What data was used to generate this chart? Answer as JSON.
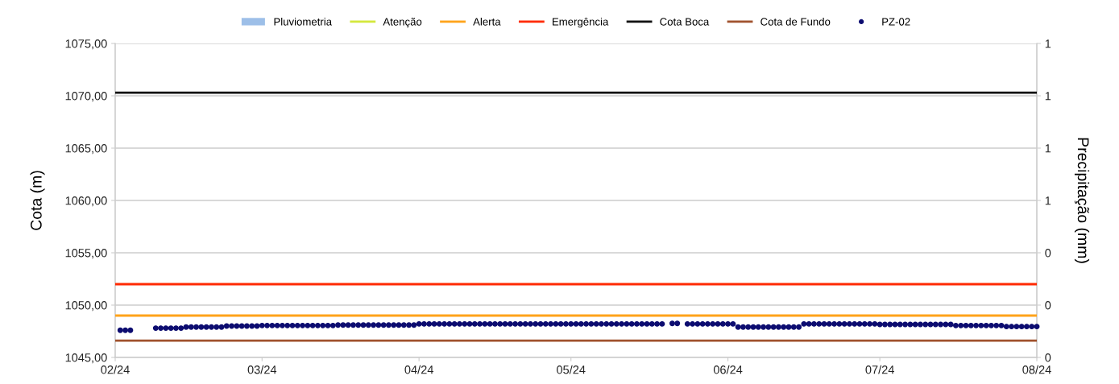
{
  "chart_data": {
    "type": "scatter",
    "xlabel": null,
    "ylabel": "Cota (m)",
    "y2label": "Precipitação (mm)",
    "xlim": [
      "2024-02-01",
      "2024-08-01"
    ],
    "xticks": [
      {
        "value": "2024-02-01",
        "label": "02/24"
      },
      {
        "value": "2024-03-01",
        "label": "03/24"
      },
      {
        "value": "2024-04-01",
        "label": "04/24"
      },
      {
        "value": "2024-05-01",
        "label": "05/24"
      },
      {
        "value": "2024-06-01",
        "label": "06/24"
      },
      {
        "value": "2024-07-01",
        "label": "07/24"
      },
      {
        "value": "2024-08-01",
        "label": "08/24"
      }
    ],
    "ylim": [
      1045,
      1075
    ],
    "yticks": [
      {
        "value": 1045,
        "label": "1045,00"
      },
      {
        "value": 1050,
        "label": "1050,00"
      },
      {
        "value": 1055,
        "label": "1055,00"
      },
      {
        "value": 1060,
        "label": "1060,00"
      },
      {
        "value": 1065,
        "label": "1065,00"
      },
      {
        "value": 1070,
        "label": "1070,00"
      },
      {
        "value": 1075,
        "label": "1075,00"
      }
    ],
    "y2lim": [
      0,
      1
    ],
    "y2ticks": [
      0,
      {
        "value": 0.1667,
        "label": "0"
      },
      {
        "value": 0.3333,
        "label": "0"
      },
      {
        "value": 0.5,
        "label": "1"
      },
      {
        "value": 0.6667,
        "label": "1"
      },
      {
        "value": 0.8333,
        "label": "1"
      },
      1
    ],
    "grid": "y",
    "legend": "top",
    "marker": "circle",
    "ref_lines": [
      {
        "axis": "y",
        "value": null,
        "label": "Atenção",
        "color": "#d4e83c"
      },
      {
        "axis": "y",
        "value": 1049,
        "label": "Alerta",
        "color": "#ffa31a"
      },
      {
        "axis": "y",
        "value": 1052,
        "label": "Emergência",
        "color": "#ff2a00"
      },
      {
        "axis": "y",
        "value": 1070.3,
        "label": "Cota Boca",
        "color": "#111111"
      },
      {
        "axis": "y",
        "value": 1046.6,
        "label": "Cota de Fundo",
        "color": "#a0522d"
      }
    ],
    "series": [
      {
        "name": "Pluviometria",
        "type": "bar",
        "color": "#9dbfe8"
      },
      {
        "name": "PZ-02",
        "color": "#0c0c70",
        "x": [
          "2024-02-02",
          "2024-02-03",
          "2024-02-04",
          "2024-02-09",
          "2024-02-10",
          "2024-02-11",
          "2024-02-12",
          "2024-02-13",
          "2024-02-14",
          "2024-02-15",
          "2024-02-16",
          "2024-02-17",
          "2024-02-18",
          "2024-02-19",
          "2024-02-20",
          "2024-02-21",
          "2024-02-22",
          "2024-02-23",
          "2024-02-24",
          "2024-02-25",
          "2024-02-26",
          "2024-02-27",
          "2024-02-28",
          "2024-02-29",
          "2024-03-01",
          "2024-03-02",
          "2024-03-03",
          "2024-03-04",
          "2024-03-05",
          "2024-03-06",
          "2024-03-07",
          "2024-03-08",
          "2024-03-09",
          "2024-03-10",
          "2024-03-11",
          "2024-03-12",
          "2024-03-13",
          "2024-03-14",
          "2024-03-15",
          "2024-03-16",
          "2024-03-17",
          "2024-03-18",
          "2024-03-19",
          "2024-03-20",
          "2024-03-21",
          "2024-03-22",
          "2024-03-23",
          "2024-03-24",
          "2024-03-25",
          "2024-03-26",
          "2024-03-27",
          "2024-03-28",
          "2024-03-29",
          "2024-03-30",
          "2024-03-31",
          "2024-04-01",
          "2024-04-02",
          "2024-04-03",
          "2024-04-04",
          "2024-04-05",
          "2024-04-06",
          "2024-04-07",
          "2024-04-08",
          "2024-04-09",
          "2024-04-10",
          "2024-04-11",
          "2024-04-12",
          "2024-04-13",
          "2024-04-14",
          "2024-04-15",
          "2024-04-16",
          "2024-04-17",
          "2024-04-18",
          "2024-04-19",
          "2024-04-20",
          "2024-04-21",
          "2024-04-22",
          "2024-04-23",
          "2024-04-24",
          "2024-04-25",
          "2024-04-26",
          "2024-04-27",
          "2024-04-28",
          "2024-04-29",
          "2024-04-30",
          "2024-05-01",
          "2024-05-02",
          "2024-05-03",
          "2024-05-04",
          "2024-05-05",
          "2024-05-06",
          "2024-05-07",
          "2024-05-08",
          "2024-05-09",
          "2024-05-10",
          "2024-05-11",
          "2024-05-12",
          "2024-05-13",
          "2024-05-14",
          "2024-05-15",
          "2024-05-16",
          "2024-05-17",
          "2024-05-18",
          "2024-05-19",
          "2024-05-21",
          "2024-05-22",
          "2024-05-24",
          "2024-05-25",
          "2024-05-26",
          "2024-05-27",
          "2024-05-28",
          "2024-05-29",
          "2024-05-30",
          "2024-05-31",
          "2024-06-01",
          "2024-06-02",
          "2024-06-03",
          "2024-06-04",
          "2024-06-05",
          "2024-06-06",
          "2024-06-07",
          "2024-06-08",
          "2024-06-09",
          "2024-06-10",
          "2024-06-11",
          "2024-06-12",
          "2024-06-13",
          "2024-06-14",
          "2024-06-15",
          "2024-06-16",
          "2024-06-17",
          "2024-06-18",
          "2024-06-19",
          "2024-06-20",
          "2024-06-21",
          "2024-06-22",
          "2024-06-23",
          "2024-06-24",
          "2024-06-25",
          "2024-06-26",
          "2024-06-27",
          "2024-06-28",
          "2024-06-29",
          "2024-06-30",
          "2024-07-01",
          "2024-07-02",
          "2024-07-03",
          "2024-07-04",
          "2024-07-05",
          "2024-07-06",
          "2024-07-07",
          "2024-07-08",
          "2024-07-09",
          "2024-07-10",
          "2024-07-11",
          "2024-07-12",
          "2024-07-13",
          "2024-07-14",
          "2024-07-15",
          "2024-07-16",
          "2024-07-17",
          "2024-07-18",
          "2024-07-19",
          "2024-07-20",
          "2024-07-21",
          "2024-07-22",
          "2024-07-23",
          "2024-07-24",
          "2024-07-25",
          "2024-07-26",
          "2024-07-27",
          "2024-07-28",
          "2024-07-29",
          "2024-07-30",
          "2024-07-31",
          "2024-08-01"
        ],
        "values": [
          1047.6,
          1047.6,
          1047.6,
          1047.8,
          1047.8,
          1047.8,
          1047.8,
          1047.8,
          1047.8,
          1047.9,
          1047.9,
          1047.9,
          1047.9,
          1047.9,
          1047.9,
          1047.9,
          1047.9,
          1048.0,
          1048.0,
          1048.0,
          1048.0,
          1048.0,
          1048.0,
          1048.0,
          1048.05,
          1048.05,
          1048.05,
          1048.05,
          1048.05,
          1048.05,
          1048.05,
          1048.05,
          1048.05,
          1048.05,
          1048.05,
          1048.05,
          1048.05,
          1048.05,
          1048.05,
          1048.1,
          1048.1,
          1048.1,
          1048.1,
          1048.1,
          1048.1,
          1048.1,
          1048.1,
          1048.1,
          1048.1,
          1048.1,
          1048.1,
          1048.1,
          1048.1,
          1048.1,
          1048.1,
          1048.2,
          1048.2,
          1048.2,
          1048.2,
          1048.2,
          1048.2,
          1048.2,
          1048.2,
          1048.2,
          1048.2,
          1048.2,
          1048.2,
          1048.2,
          1048.2,
          1048.2,
          1048.2,
          1048.2,
          1048.2,
          1048.2,
          1048.2,
          1048.2,
          1048.2,
          1048.2,
          1048.2,
          1048.2,
          1048.2,
          1048.2,
          1048.2,
          1048.2,
          1048.2,
          1048.2,
          1048.2,
          1048.2,
          1048.2,
          1048.2,
          1048.2,
          1048.2,
          1048.2,
          1048.2,
          1048.2,
          1048.2,
          1048.2,
          1048.2,
          1048.2,
          1048.2,
          1048.2,
          1048.2,
          1048.2,
          1048.2,
          1048.25,
          1048.25,
          1048.2,
          1048.2,
          1048.2,
          1048.2,
          1048.2,
          1048.2,
          1048.2,
          1048.2,
          1048.2,
          1048.2,
          1047.9,
          1047.9,
          1047.9,
          1047.9,
          1047.9,
          1047.9,
          1047.9,
          1047.9,
          1047.9,
          1047.9,
          1047.9,
          1047.9,
          1047.9,
          1048.2,
          1048.2,
          1048.2,
          1048.2,
          1048.2,
          1048.2,
          1048.2,
          1048.2,
          1048.2,
          1048.2,
          1048.2,
          1048.2,
          1048.2,
          1048.2,
          1048.2,
          1048.15,
          1048.15,
          1048.15,
          1048.15,
          1048.15,
          1048.15,
          1048.15,
          1048.15,
          1048.15,
          1048.15,
          1048.15,
          1048.15,
          1048.15,
          1048.15,
          1048.15,
          1048.05,
          1048.05,
          1048.05,
          1048.05,
          1048.05,
          1048.05,
          1048.05,
          1048.05,
          1048.05,
          1048.05,
          1047.95,
          1047.95,
          1047.95,
          1047.95,
          1047.95,
          1047.95,
          1047.95
        ]
      }
    ]
  }
}
